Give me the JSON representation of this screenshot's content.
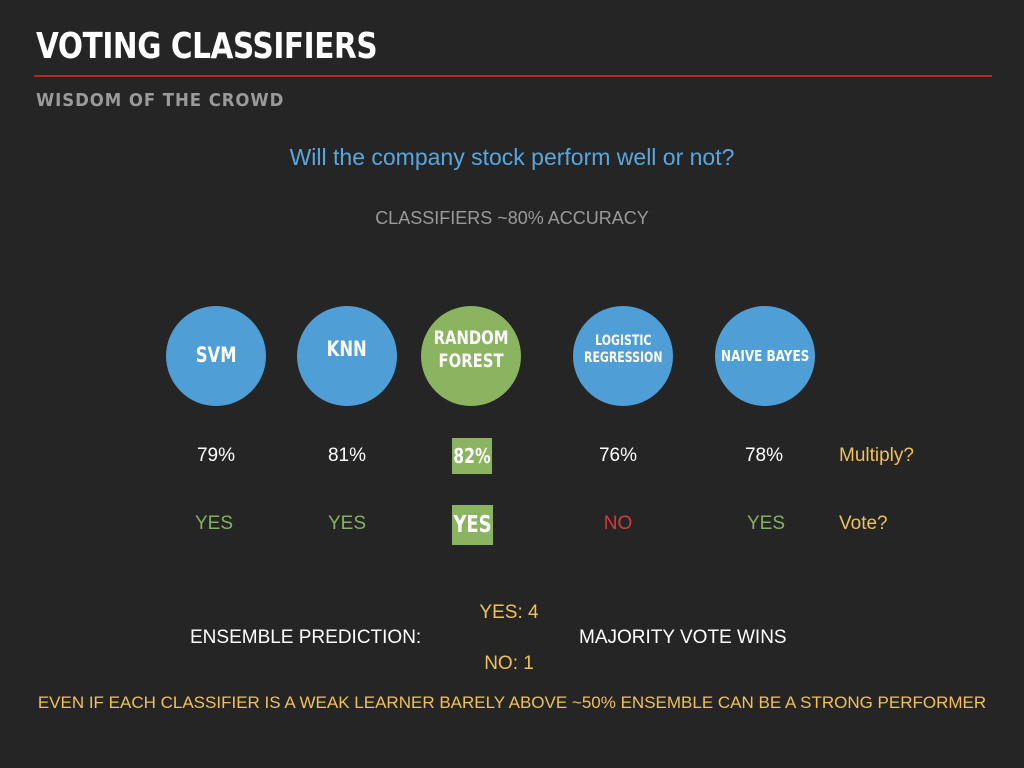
{
  "header": {
    "title": "VOTING CLASSIFIERS",
    "subtitle": "WISDOM OF THE CROWD",
    "rule_color": "#b0282b"
  },
  "question": "Will the company stock perform well or not?",
  "classifiers_note": "CLASSIFIERS ~80% ACCURACY",
  "classifiers": [
    {
      "name": "SVM",
      "accuracy": "79%",
      "vote": "YES",
      "color": "#4f9ed6",
      "highlight": false
    },
    {
      "name": "KNN",
      "accuracy": "81%",
      "vote": "YES",
      "color": "#4f9ed6",
      "highlight": false
    },
    {
      "name": "RANDOM\nFOREST",
      "accuracy": "82%",
      "vote": "YES",
      "color": "#8ab460",
      "highlight": true
    },
    {
      "name": "LOGISTIC\nREGRESSION",
      "accuracy": "76%",
      "vote": "NO",
      "color": "#4f9ed6",
      "highlight": false
    },
    {
      "name": "NAIVE BAYES",
      "accuracy": "78%",
      "vote": "YES",
      "color": "#4f9ed6",
      "highlight": false
    }
  ],
  "row_labels": {
    "multiply": "Multiply?",
    "vote": "Vote?"
  },
  "ensemble": {
    "label": "ENSEMBLE PREDICTION:",
    "yes_count": "YES: 4",
    "no_count": "NO: 1",
    "rule": "MAJORITY VOTE WINS"
  },
  "footer": "EVEN IF EACH CLASSIFIER IS A WEAK LEARNER BARELY ABOVE ~50% ENSEMBLE CAN BE A STRONG PERFORMER",
  "colors": {
    "background": "#252525",
    "accent_blue": "#4f9ed6",
    "accent_green": "#8ab460",
    "yes_green": "#84b15e",
    "no_red": "#d63b3b",
    "highlight_yellow": "#efc158",
    "muted_gray": "#9a9a9a"
  }
}
